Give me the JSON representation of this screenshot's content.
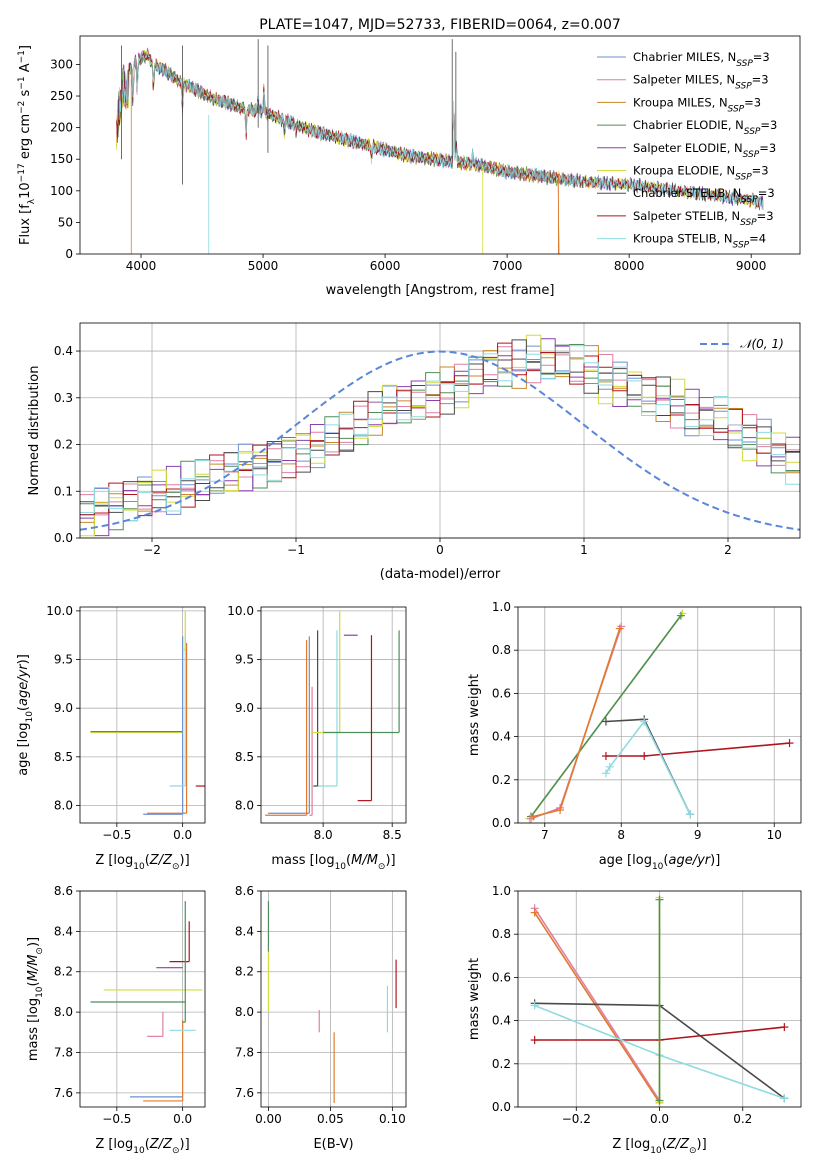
{
  "colors": {
    "Chabrier MILES": "#6f8fd6",
    "Salpeter MILES": "#e07fa3",
    "Kroupa MILES": "#c9892a",
    "Chabrier ELODIE": "#4f8f5a",
    "Salpeter ELODIE": "#8a3fb0",
    "Kroupa ELODIE": "#d3dc3a",
    "Chabrier STELIB": "#4a4a4a",
    "Salpeter STELIB": "#b0141e",
    "Kroupa STELIB": "#8fdbe0",
    "orange": "#e07a2e",
    "normal_curve": "#5b86d9",
    "grid": "#b0b0b0"
  },
  "legend_text": {
    "n_ssp_prefix": "N",
    "n_ssp_sub": "SSP",
    "normal_label": "𝒩(0, 1)"
  },
  "chart_data": [
    {
      "id": "spectrum",
      "type": "line",
      "title": "PLATE=1047, MJD=52733, FIBERID=0064, z=0.007",
      "xlabel": "wavelength [Angstrom, rest frame]",
      "ylabel": "Flux [f_λ 10^-17 erg cm^-2 s^-1 A^-1]",
      "xlim": [
        3500,
        9400
      ],
      "ylim": [
        0,
        345
      ],
      "xticks": [
        4000,
        5000,
        6000,
        7000,
        8000,
        9000
      ],
      "yticks": [
        0,
        50,
        100,
        150,
        200,
        250,
        300
      ],
      "legend_position": "top-right",
      "continuum": {
        "x": [
          3800,
          3850,
          3900,
          3950,
          4000,
          4050,
          4100,
          4200,
          4300,
          4400,
          4500,
          4600,
          4700,
          4800,
          4900,
          5000,
          5200,
          5400,
          5600,
          5800,
          6000,
          6200,
          6400,
          6600,
          6800,
          7000,
          7200,
          7400,
          7600,
          7800,
          8000,
          8200,
          8400,
          8600,
          8800,
          9000,
          9100
        ],
        "y": [
          230,
          300,
          290,
          305,
          310,
          315,
          300,
          290,
          275,
          265,
          255,
          245,
          240,
          232,
          228,
          225,
          210,
          195,
          185,
          175,
          165,
          155,
          150,
          145,
          140,
          130,
          125,
          120,
          115,
          112,
          110,
          105,
          100,
          95,
          90,
          85,
          80
        ]
      },
      "series": [
        {
          "name": "Chabrier MILES",
          "n_ssp": "3"
        },
        {
          "name": "Salpeter MILES",
          "n_ssp": "3"
        },
        {
          "name": "Kroupa MILES",
          "n_ssp": "3"
        },
        {
          "name": "Chabrier ELODIE",
          "n_ssp": "3"
        },
        {
          "name": "Salpeter ELODIE",
          "n_ssp": "3"
        },
        {
          "name": "Kroupa ELODIE",
          "n_ssp": "3"
        },
        {
          "name": "Chabrier STELIB",
          "n_ssp": "3"
        },
        {
          "name": "Salpeter STELIB",
          "n_ssp": "3"
        },
        {
          "name": "Kroupa STELIB",
          "n_ssp": "4"
        }
      ]
    },
    {
      "id": "residuals",
      "type": "line",
      "title": "",
      "xlabel": "(data-model)/error",
      "ylabel": "Normed distribution",
      "xlim": [
        -2.5,
        2.5
      ],
      "ylim": [
        0,
        0.46
      ],
      "xticks": [
        -2,
        -1,
        0,
        1,
        2
      ],
      "yticks": [
        0.0,
        0.1,
        0.2,
        0.3,
        0.4
      ],
      "grid": true,
      "legend_position": "top-right",
      "bin_width": 0.1,
      "bin_start": -2.5,
      "histogram_envelope": [
        0.05,
        0.06,
        0.07,
        0.08,
        0.09,
        0.1,
        0.1,
        0.11,
        0.12,
        0.13,
        0.14,
        0.15,
        0.16,
        0.17,
        0.18,
        0.19,
        0.2,
        0.21,
        0.22,
        0.24,
        0.26,
        0.28,
        0.29,
        0.3,
        0.31,
        0.32,
        0.33,
        0.35,
        0.36,
        0.37,
        0.37,
        0.38,
        0.38,
        0.38,
        0.37,
        0.36,
        0.34,
        0.33,
        0.32,
        0.31,
        0.3,
        0.29,
        0.27,
        0.26,
        0.25,
        0.23,
        0.21,
        0.2,
        0.18,
        0.17,
        0.15,
        0.14,
        0.13,
        0.12,
        0.11,
        0.1,
        0.09,
        0.08,
        0.07,
        0.06,
        0.05,
        0.05,
        0.04,
        0.04,
        0.03,
        0.03,
        0.03,
        0.02,
        0.02,
        0.02
      ]
    },
    {
      "id": "age_vs_Z",
      "type": "scatter",
      "xlabel": "Z [log10(Z/Z⊙)]",
      "ylabel": "age [log10(age/yr)]",
      "xlim": [
        -0.78,
        0.17
      ],
      "ylim": [
        7.82,
        10.04
      ],
      "xticks": [
        -0.5,
        0.0
      ],
      "yticks": [
        8.0,
        8.5,
        9.0,
        9.5,
        10.0
      ],
      "points": [
        {
          "series": "Kroupa ELODIE",
          "x": -0.7,
          "y": 8.75,
          "dx": 0.7,
          "dy": 0
        },
        {
          "series": "Chabrier ELODIE",
          "x": -0.7,
          "y": 8.76,
          "dx": 0.7,
          "dy": 0
        },
        {
          "series": "orange",
          "x": -0.27,
          "y": 7.92,
          "dx": 0.3,
          "dy": 1.75
        },
        {
          "series": "Chabrier MILES",
          "x": -0.3,
          "y": 7.91,
          "dx": 0.3,
          "dy": 1.83
        },
        {
          "series": "Salpeter STELIB",
          "x": 0.1,
          "y": 8.2,
          "dx": 0.1,
          "dy": 1.55
        },
        {
          "series": "Kroupa STELIB",
          "x": -0.1,
          "y": 8.2,
          "dx": 0.12,
          "dy": 1.55
        },
        {
          "series": "Kroupa ELODIE",
          "x": 0.0,
          "y": 9.6,
          "dx": 0.02,
          "dy": 0.4
        }
      ]
    },
    {
      "id": "age_vs_mass",
      "type": "scatter",
      "xlabel": "mass [log10(M/M⊙)]",
      "ylabel": "",
      "xlim": [
        7.55,
        8.6
      ],
      "ylim": [
        7.82,
        10.04
      ],
      "xticks": [
        8.0,
        8.5
      ],
      "yticks": [
        8.0,
        8.5,
        9.0,
        9.5,
        10.0
      ],
      "points": [
        {
          "series": "Chabrier MILES",
          "x": 7.6,
          "y": 7.92,
          "dx": 0.3,
          "dy": 1.82
        },
        {
          "series": "orange",
          "x": 7.58,
          "y": 7.9,
          "dx": 0.3,
          "dy": 1.8
        },
        {
          "series": "Salpeter MILES",
          "x": 7.9,
          "y": 7.9,
          "dx": 0.02,
          "dy": 1.32
        },
        {
          "series": "Kroupa STELIB",
          "x": 7.92,
          "y": 8.2,
          "dx": 0.18,
          "dy": 1.6
        },
        {
          "series": "Chabrier STELIB",
          "x": 7.93,
          "y": 8.2,
          "dx": 0.03,
          "dy": 1.6
        },
        {
          "series": "Kroupa ELODIE",
          "x": 7.92,
          "y": 8.75,
          "dx": 0.2,
          "dy": 1.25
        },
        {
          "series": "Chabrier ELODIE",
          "x": 8.0,
          "y": 8.75,
          "dx": 0.55,
          "dy": 1.05
        },
        {
          "series": "Salpeter STELIB",
          "x": 8.25,
          "y": 8.05,
          "dx": 0.1,
          "dy": 1.7
        },
        {
          "series": "Salpeter ELODIE",
          "x": 8.15,
          "y": 9.75,
          "dx": 0.1,
          "dy": 0
        }
      ]
    },
    {
      "id": "weight_vs_age",
      "type": "line",
      "xlabel": "age [log10(age/yr)]",
      "ylabel": "mass weight",
      "xlim": [
        6.65,
        10.35
      ],
      "ylim": [
        0,
        1
      ],
      "xticks": [
        7,
        8,
        9,
        10
      ],
      "yticks": [
        0.0,
        0.2,
        0.4,
        0.6,
        0.8,
        1.0
      ],
      "grid": true,
      "series": [
        {
          "name": "Kroupa ELODIE",
          "x": [
            6.8,
            8.8
          ],
          "y": [
            0.02,
            0.97
          ]
        },
        {
          "name": "Chabrier ELODIE",
          "x": [
            6.82,
            8.78
          ],
          "y": [
            0.03,
            0.96
          ]
        },
        {
          "name": "Salpeter MILES",
          "x": [
            6.82,
            7.2,
            8.0
          ],
          "y": [
            0.02,
            0.07,
            0.91
          ]
        },
        {
          "name": "orange",
          "x": [
            6.85,
            7.2,
            7.98
          ],
          "y": [
            0.03,
            0.06,
            0.9
          ]
        },
        {
          "name": "Chabrier STELIB",
          "x": [
            7.8,
            8.3,
            8.9
          ],
          "y": [
            0.47,
            0.48,
            0.04
          ]
        },
        {
          "name": "Salpeter STELIB",
          "x": [
            7.8,
            8.3,
            10.2
          ],
          "y": [
            0.31,
            0.31,
            0.37
          ]
        },
        {
          "name": "Kroupa STELIB",
          "x": [
            7.8,
            7.85,
            8.3,
            8.9
          ],
          "y": [
            0.23,
            0.26,
            0.47,
            0.04
          ]
        }
      ]
    },
    {
      "id": "mass_vs_Z",
      "type": "scatter",
      "xlabel": "Z [log10(Z/Z⊙)]",
      "ylabel": "mass [log10(M/M⊙)]",
      "xlim": [
        -0.78,
        0.17
      ],
      "ylim": [
        7.53,
        8.6
      ],
      "xticks": [
        -0.5,
        0.0
      ],
      "yticks": [
        7.6,
        7.8,
        8.0,
        8.2,
        8.4,
        8.6
      ],
      "points": [
        {
          "series": "Kroupa ELODIE",
          "x": -0.6,
          "y": 8.11,
          "dx": 0.75,
          "dy": 0
        },
        {
          "series": "Chabrier ELODIE",
          "x": -0.7,
          "y": 8.05,
          "dx": 0.72,
          "dy": 0
        },
        {
          "series": "Salpeter ELODIE",
          "x": -0.2,
          "y": 8.22,
          "dx": 0.2,
          "dy": 0
        },
        {
          "series": "Salpeter STELIB",
          "x": -0.1,
          "y": 8.25,
          "dx": 0.15,
          "dy": 0.2
        },
        {
          "series": "Chabrier MILES",
          "x": -0.4,
          "y": 7.58,
          "dx": 0.4,
          "dy": 0
        },
        {
          "series": "orange",
          "x": -0.3,
          "y": 7.56,
          "dx": 0.3,
          "dy": 0.4
        },
        {
          "series": "Salpeter MILES",
          "x": -0.27,
          "y": 7.88,
          "dx": 0.12,
          "dy": 0.12
        },
        {
          "series": "Kroupa STELIB",
          "x": -0.1,
          "y": 7.91,
          "dx": 0.2,
          "dy": 0
        },
        {
          "series": "Chabrier ELODIE",
          "x": 0.0,
          "y": 7.95,
          "dx": 0.02,
          "dy": 0.6
        }
      ]
    },
    {
      "id": "mass_vs_ebv",
      "type": "scatter",
      "xlabel": "E(B-V)",
      "ylabel": "",
      "xlim": [
        -0.006,
        0.111
      ],
      "ylim": [
        7.53,
        8.6
      ],
      "xticks": [
        0.0,
        0.05,
        0.1
      ],
      "yticks": [
        7.6,
        7.8,
        8.0,
        8.2,
        8.4,
        8.6
      ],
      "points": [
        {
          "series": "Chabrier ELODIE",
          "x": 0.0,
          "y": 8.3,
          "dx": 0,
          "dy": 0.25
        },
        {
          "series": "Kroupa ELODIE",
          "x": 0.0,
          "y": 8.0,
          "dx": 0,
          "dy": 0.3
        },
        {
          "series": "Salpeter MILES",
          "x": 0.041,
          "y": 7.9,
          "dx": 0,
          "dy": 0.11
        },
        {
          "series": "orange",
          "x": 0.053,
          "y": 7.55,
          "dx": 0,
          "dy": 0.35
        },
        {
          "series": "Kroupa STELIB",
          "x": 0.096,
          "y": 7.9,
          "dx": 0,
          "dy": 0.23
        },
        {
          "series": "Salpeter STELIB",
          "x": 0.103,
          "y": 8.02,
          "dx": 0,
          "dy": 0.24
        }
      ]
    },
    {
      "id": "weight_vs_Z",
      "type": "line",
      "xlabel": "Z [log10(Z/Z⊙)]",
      "ylabel": "mass weight",
      "xlim": [
        -0.34,
        0.34
      ],
      "ylim": [
        0,
        1
      ],
      "xticks": [
        -0.2,
        0.0,
        0.2
      ],
      "yticks": [
        0.0,
        0.2,
        0.4,
        0.6,
        0.8,
        1.0
      ],
      "grid": true,
      "series": [
        {
          "name": "Salpeter MILES",
          "x": [
            -0.3,
            0.0
          ],
          "y": [
            0.92,
            0.03
          ]
        },
        {
          "name": "orange",
          "x": [
            -0.3,
            0.0
          ],
          "y": [
            0.9,
            0.02
          ]
        },
        {
          "name": "Chabrier STELIB",
          "x": [
            -0.3,
            0.0,
            0.3
          ],
          "y": [
            0.48,
            0.47,
            0.04
          ]
        },
        {
          "name": "Salpeter STELIB",
          "x": [
            -0.3,
            0.0,
            0.3
          ],
          "y": [
            0.31,
            0.31,
            0.37
          ]
        },
        {
          "name": "Kroupa STELIB",
          "x": [
            -0.3,
            0.0,
            0.3
          ],
          "y": [
            0.47,
            0.24,
            0.04
          ]
        },
        {
          "name": "Kroupa ELODIE",
          "x": [
            0.0,
            0.0
          ],
          "y": [
            0.02,
            0.97
          ]
        },
        {
          "name": "Chabrier ELODIE",
          "x": [
            0.0,
            0.0
          ],
          "y": [
            0.03,
            0.96
          ]
        }
      ]
    }
  ]
}
